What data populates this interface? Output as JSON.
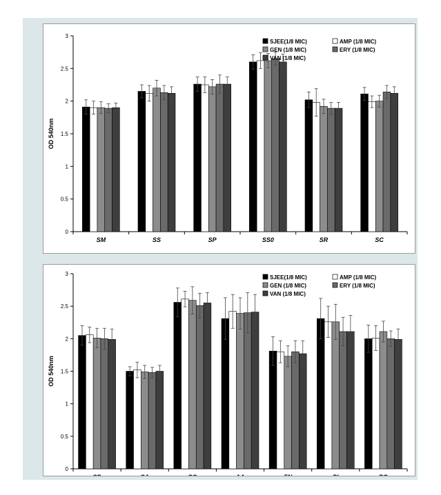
{
  "colors": {
    "outer_background": "#dbe7e9",
    "series": [
      "#000000",
      "#ffffff",
      "#8c8c8c",
      "#6a6a6a",
      "#3e3e3e"
    ]
  },
  "chart_data": [
    {
      "type": "bar",
      "ylabel": "OD 540nm",
      "ylim": [
        0,
        3
      ],
      "yticks": [
        "0",
        "0.5",
        "1",
        "1.5",
        "2",
        "2.5",
        "3"
      ],
      "grid": false,
      "legend_position": "top-right",
      "categories": [
        "SM",
        "SS",
        "SP",
        "SS0",
        "SR",
        "SC"
      ],
      "series": [
        {
          "name": "SJEE(1/8 MIC)",
          "values": [
            1.91,
            2.15,
            2.26,
            2.6,
            2.02,
            2.11
          ],
          "errors": [
            0.11,
            0.1,
            0.11,
            0.11,
            0.12,
            0.1
          ]
        },
        {
          "name": "AMP (1/8 MIC)",
          "values": [
            1.9,
            2.12,
            2.25,
            2.62,
            1.98,
            1.99
          ],
          "errors": [
            0.1,
            0.12,
            0.12,
            0.12,
            0.21,
            0.09
          ]
        },
        {
          "name": "GEN (1/8 MIC)",
          "values": [
            1.9,
            2.2,
            2.22,
            2.62,
            1.92,
            2.0
          ],
          "errors": [
            0.09,
            0.12,
            0.11,
            0.11,
            0.11,
            0.09
          ]
        },
        {
          "name": "ERY (1/8 MIC)",
          "values": [
            1.89,
            2.13,
            2.26,
            2.65,
            1.89,
            2.14
          ],
          "errors": [
            0.07,
            0.11,
            0.14,
            0.1,
            0.09,
            0.1
          ]
        },
        {
          "name": "VAN (1/8 MIC)",
          "values": [
            1.9,
            2.12,
            2.26,
            2.6,
            1.89,
            2.12
          ],
          "errors": [
            0.07,
            0.1,
            0.11,
            0.12,
            0.09,
            0.1
          ]
        }
      ]
    },
    {
      "type": "bar",
      "ylabel": "OD 540nm",
      "ylim": [
        0,
        3
      ],
      "yticks": [
        "0",
        "0.5",
        "1",
        "1.5",
        "2",
        "2.5",
        "3"
      ],
      "grid": false,
      "legend_position": "top-right",
      "categories": [
        "SD",
        "SA",
        "SG",
        "AA",
        "FN",
        "PI",
        "PG"
      ],
      "series": [
        {
          "name": "SJEE(1/8 MIC)",
          "values": [
            2.05,
            1.5,
            2.56,
            2.31,
            1.81,
            2.31,
            2.0
          ],
          "errors": [
            0.15,
            0.07,
            0.22,
            0.32,
            0.22,
            0.31,
            0.21
          ]
        },
        {
          "name": "AMP (1/8 MIC)",
          "values": [
            2.06,
            1.52,
            2.61,
            2.42,
            1.8,
            2.26,
            2.01
          ],
          "errors": [
            0.12,
            0.12,
            0.12,
            0.26,
            0.17,
            0.24,
            0.19
          ]
        },
        {
          "name": "GEN (1/8 MIC)",
          "values": [
            2.01,
            1.49,
            2.59,
            2.39,
            1.73,
            2.26,
            2.11
          ],
          "errors": [
            0.15,
            0.1,
            0.21,
            0.24,
            0.16,
            0.27,
            0.16
          ]
        },
        {
          "name": "ERY (1/8 MIC)",
          "values": [
            2.0,
            1.48,
            2.51,
            2.4,
            1.8,
            2.11,
            2.0
          ],
          "errors": [
            0.16,
            0.08,
            0.19,
            0.31,
            0.17,
            0.22,
            0.12
          ]
        },
        {
          "name": "VAN (1/8 MIC)",
          "values": [
            1.99,
            1.5,
            2.55,
            2.41,
            1.77,
            2.11,
            1.99
          ],
          "errors": [
            0.16,
            0.09,
            0.16,
            0.27,
            0.2,
            0.25,
            0.16
          ]
        }
      ]
    }
  ]
}
